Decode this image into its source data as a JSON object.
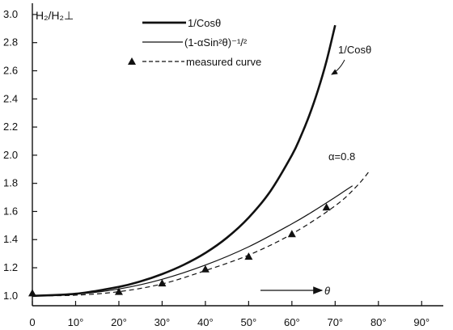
{
  "chart_data": {
    "type": "line",
    "ylabel": "H₂/H₂⊥",
    "xlabel": "θ",
    "xlim": [
      0,
      95
    ],
    "ylim": [
      0.93,
      3.08
    ],
    "xticks": [
      0,
      10,
      20,
      30,
      40,
      50,
      60,
      70,
      80,
      90
    ],
    "xtick_labels": [
      "0",
      "10°",
      "20°",
      "30°",
      "40°",
      "50°",
      "60°",
      "70°",
      "80°",
      "90°"
    ],
    "yticks": [
      1.0,
      1.2,
      1.4,
      1.6,
      1.8,
      2.0,
      2.2,
      2.4,
      2.6,
      2.8,
      3.0
    ],
    "ytick_labels": [
      "1.0",
      "1.2",
      "1.4",
      "1.6",
      "1.8",
      "2.0",
      "2.2",
      "2.4",
      "2.6",
      "2.8",
      "3.0"
    ],
    "grid": false,
    "legend_position": "top",
    "series": [
      {
        "name": "1/Cosθ",
        "style": "thick-solid",
        "x": [
          0,
          10,
          20,
          25,
          30,
          35,
          40,
          45,
          50,
          55,
          60,
          62,
          64,
          66,
          68,
          70
        ],
        "y": [
          1.0,
          1.015,
          1.064,
          1.103,
          1.155,
          1.221,
          1.305,
          1.414,
          1.556,
          1.743,
          2.0,
          2.13,
          2.281,
          2.459,
          2.669,
          2.924
        ]
      },
      {
        "name": "(1-αSin²θ)⁻¹/²",
        "style": "thin-solid",
        "x": [
          0,
          10,
          20,
          30,
          40,
          50,
          60,
          65,
          70,
          72,
          74
        ],
        "y": [
          1.0,
          1.012,
          1.049,
          1.118,
          1.219,
          1.349,
          1.512,
          1.603,
          1.701,
          1.742,
          1.782
        ]
      },
      {
        "name": "measured curve",
        "style": "dashed",
        "x": [
          0,
          10,
          20,
          30,
          40,
          50,
          60,
          70,
          75,
          78
        ],
        "y": [
          1.0,
          1.005,
          1.03,
          1.085,
          1.18,
          1.29,
          1.44,
          1.64,
          1.78,
          1.89
        ]
      },
      {
        "name": "measured points",
        "style": "triangle-markers",
        "x": [
          0,
          20,
          30,
          40,
          50,
          60,
          68
        ],
        "y": [
          1.02,
          1.03,
          1.09,
          1.19,
          1.28,
          1.44,
          1.63
        ]
      }
    ],
    "annotations": [
      {
        "id": "curve1_label",
        "text": "1/Cosθ",
        "x": 73,
        "y": 2.76
      },
      {
        "id": "alpha_label",
        "text": "α=0.8",
        "x": 68,
        "y": 2.02
      },
      {
        "id": "theta_label",
        "text": "θ",
        "x": 58,
        "y": 0.97
      }
    ],
    "legend": [
      {
        "text": "1/Cosθ",
        "series": "1/Cosθ"
      },
      {
        "text": "(1-αSin²θ)⁻¹/²",
        "series": "(1-αSin²θ)⁻¹/²"
      },
      {
        "text": "measured curve",
        "series": "measured curve"
      }
    ]
  }
}
